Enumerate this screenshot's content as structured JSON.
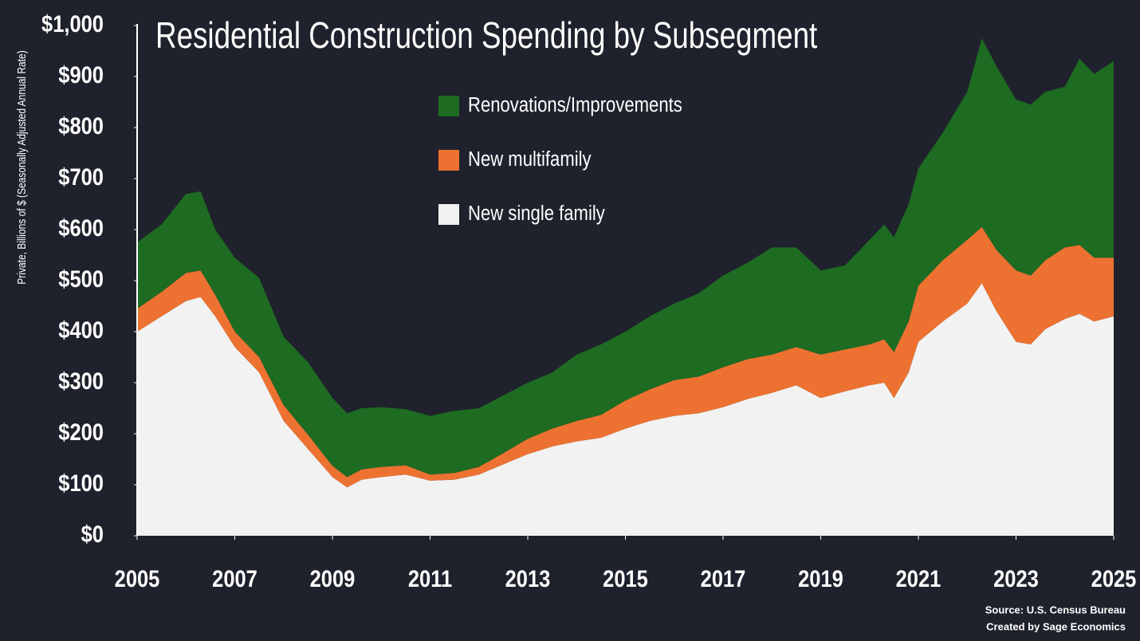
{
  "chart_data": {
    "type": "stacked_area",
    "title": "Residential Construction Spending by Subsegment",
    "y_label": "Private, Billions of $ (Seasonally Adjusted Annual Rate)",
    "source": "Source: U.S. Census Bureau",
    "credit": "Created by Sage Economics",
    "x": [
      2005,
      2005.5,
      2006,
      2006.3,
      2006.6,
      2007,
      2007.5,
      2008,
      2008.5,
      2009,
      2009.3,
      2009.6,
      2010,
      2010.5,
      2011,
      2011.5,
      2012,
      2012.5,
      2013,
      2013.5,
      2014,
      2014.5,
      2015,
      2015.5,
      2016,
      2016.5,
      2017,
      2017.5,
      2018,
      2018.5,
      2019,
      2019.5,
      2020,
      2020.3,
      2020.5,
      2020.8,
      2021,
      2021.5,
      2022,
      2022.3,
      2022.6,
      2023,
      2023.3,
      2023.6,
      2024,
      2024.3,
      2024.6,
      2025
    ],
    "series": [
      {
        "name": "New single family",
        "color": "#f2f2f2",
        "values": [
          400,
          430,
          460,
          468,
          430,
          370,
          320,
          225,
          170,
          115,
          95,
          110,
          115,
          120,
          108,
          110,
          120,
          140,
          160,
          175,
          185,
          192,
          210,
          225,
          235,
          240,
          252,
          268,
          280,
          295,
          270,
          283,
          295,
          300,
          270,
          320,
          380,
          420,
          455,
          495,
          440,
          380,
          375,
          405,
          425,
          435,
          420,
          430
        ]
      },
      {
        "name": "New multifamily",
        "color": "#ed7231",
        "values": [
          45,
          48,
          55,
          52,
          42,
          30,
          30,
          31,
          28,
          22,
          20,
          20,
          20,
          18,
          12,
          13,
          15,
          22,
          30,
          35,
          40,
          45,
          55,
          62,
          70,
          72,
          78,
          78,
          75,
          75,
          85,
          82,
          80,
          85,
          90,
          100,
          110,
          120,
          125,
          110,
          120,
          140,
          135,
          135,
          140,
          135,
          125,
          115
        ]
      },
      {
        "name": "Renovations/Improvements",
        "color": "#1e6b22",
        "values": [
          130,
          132,
          155,
          155,
          128,
          145,
          155,
          134,
          142,
          133,
          125,
          120,
          117,
          110,
          115,
          122,
          115,
          113,
          110,
          110,
          130,
          138,
          135,
          143,
          150,
          163,
          180,
          189,
          210,
          195,
          165,
          165,
          205,
          225,
          225,
          230,
          230,
          250,
          290,
          370,
          360,
          335,
          335,
          330,
          315,
          365,
          360,
          385
        ]
      }
    ],
    "xlim": [
      2005,
      2025
    ],
    "xticks": [
      2005,
      2007,
      2009,
      2011,
      2013,
      2015,
      2017,
      2019,
      2021,
      2023,
      2025
    ],
    "ylim": [
      0,
      1000
    ],
    "yticks": [
      {
        "value": 0,
        "label": "$0"
      },
      {
        "value": 100,
        "label": "$100"
      },
      {
        "value": 200,
        "label": "$200"
      },
      {
        "value": 300,
        "label": "$300"
      },
      {
        "value": 400,
        "label": "$400"
      },
      {
        "value": 500,
        "label": "$500"
      },
      {
        "value": 600,
        "label": "$600"
      },
      {
        "value": 700,
        "label": "$700"
      },
      {
        "value": 800,
        "label": "$800"
      },
      {
        "value": 900,
        "label": "$900"
      },
      {
        "value": 1000,
        "label": "$1,000"
      }
    ]
  }
}
